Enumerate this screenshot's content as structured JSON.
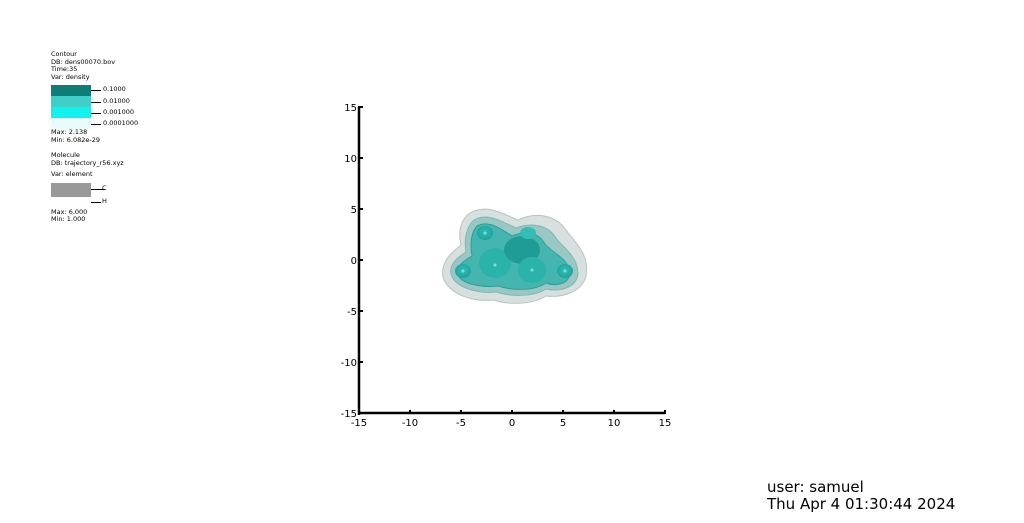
{
  "legend": {
    "contour": {
      "plot_type": "Contour",
      "db": "DB: dens00070.bov",
      "time": "Time:35",
      "var": "Var: density",
      "levels": [
        {
          "label": "0.1000",
          "color": "#0e7d78"
        },
        {
          "label": "0.01000",
          "color": "#3fcfc6"
        },
        {
          "label": "0.001000",
          "color": "#10f2ee"
        },
        {
          "label": "0.0001000",
          "color": "#e6fdfc"
        }
      ],
      "max": "Max:  2.138",
      "min": "Min:  6.082e-29"
    },
    "molecule": {
      "plot_type": "Molecule",
      "db": "DB: trajectory_r56.xyz",
      "var": "Var: element",
      "elements": [
        {
          "label": "C",
          "color": "#999999"
        },
        {
          "label": "H",
          "color": "#ffffff"
        }
      ],
      "max": "Max:  6.000",
      "min": "Min:  1.000"
    }
  },
  "axes": {
    "x_ticks": [
      "-15",
      "-10",
      "-5",
      "0",
      "5",
      "10",
      "15"
    ],
    "y_ticks": [
      "15",
      "10",
      "5",
      "0",
      "-5",
      "-10",
      "-15"
    ],
    "x_range": [
      -15,
      15
    ],
    "y_range": [
      -15,
      15
    ]
  },
  "footer": {
    "user": "user: samuel",
    "timestamp": "Thu Apr  4 01:30:44 2024"
  }
}
